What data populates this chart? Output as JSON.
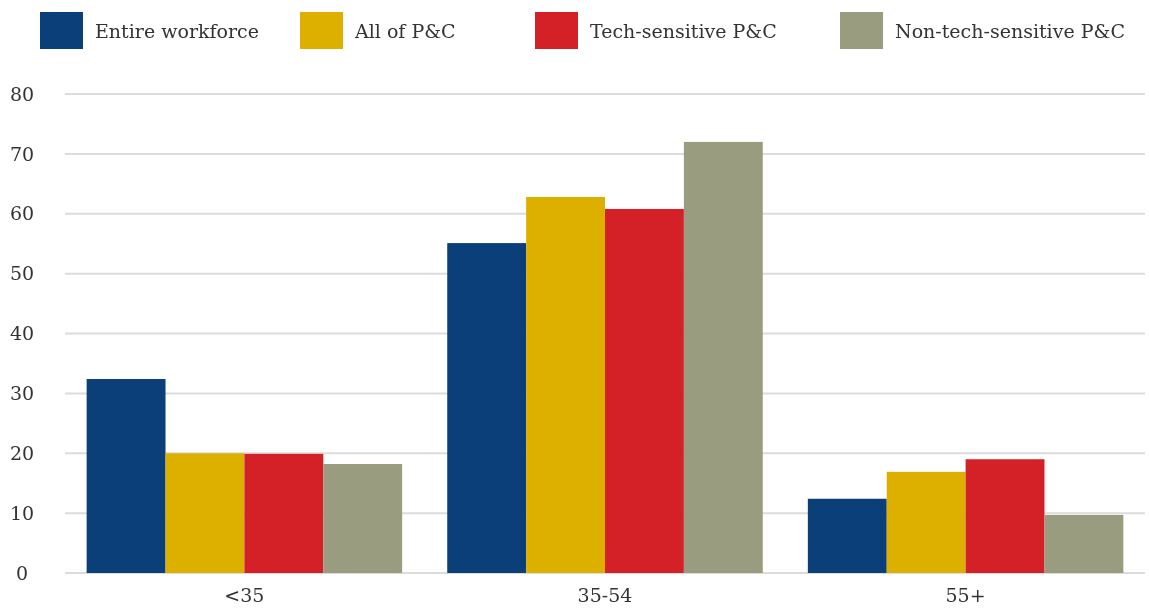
{
  "chart_data": {
    "type": "bar",
    "categories": [
      "<35",
      "35-54",
      "55+"
    ],
    "series": [
      {
        "name": "Entire workforce",
        "color": "#0a3f7a",
        "values": [
          32.4,
          55.1,
          12.4
        ]
      },
      {
        "name": "All of P&C",
        "color": "#ddb000",
        "values": [
          20.0,
          62.8,
          16.9
        ]
      },
      {
        "name": "Tech-sensitive P&C",
        "color": "#d42027",
        "values": [
          19.9,
          60.8,
          19.0
        ]
      },
      {
        "name": "Non-tech-sensitive P&C",
        "color": "#9a9c80",
        "values": [
          18.2,
          72.0,
          9.7
        ]
      }
    ],
    "ylim": [
      0,
      80
    ],
    "yticks": [
      0,
      10,
      20,
      30,
      40,
      50,
      60,
      70,
      80
    ],
    "grid": "y",
    "legend": "top"
  }
}
